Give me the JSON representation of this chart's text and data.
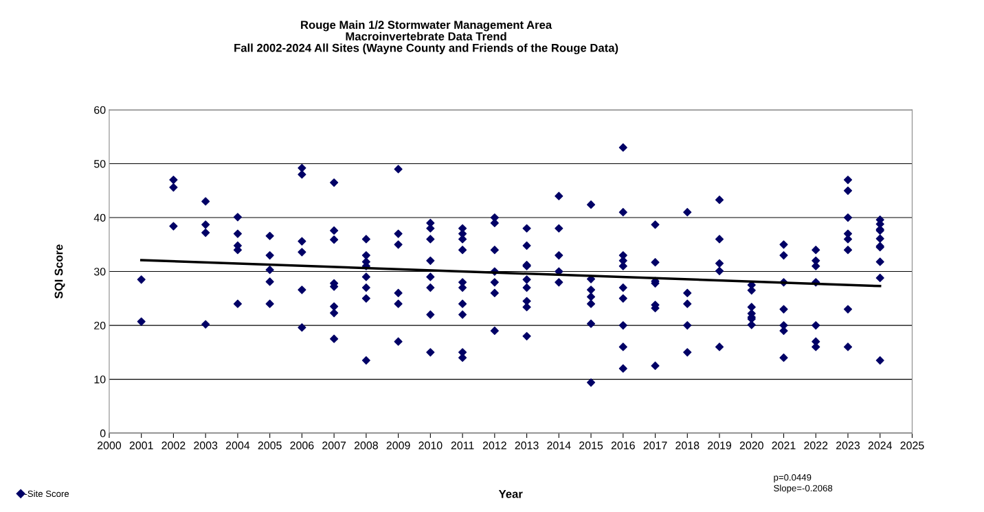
{
  "chart_data": {
    "type": "scatter",
    "title": "Rouge Main 1/2 Stormwater Management Area\nMacroinvertebrate Data Trend\nFall 2002-2024 All Sites (Wayne County and Friends of the Rouge Data)",
    "xlabel": "Year",
    "ylabel": "SQI Score",
    "xlim": [
      2000,
      2025
    ],
    "xticks": [
      2000,
      2001,
      2002,
      2003,
      2004,
      2005,
      2006,
      2007,
      2008,
      2009,
      2010,
      2011,
      2012,
      2013,
      2014,
      2015,
      2016,
      2017,
      2018,
      2019,
      2020,
      2021,
      2022,
      2023,
      2024,
      2025
    ],
    "ylim": [
      0,
      60
    ],
    "yticks": [
      0,
      10,
      20,
      30,
      40,
      50,
      60
    ],
    "grid": "y",
    "legend": "bottom left",
    "marker": "diamond",
    "annotations": [
      "p=0.0449",
      "Slope=-0.2068"
    ],
    "series": [
      {
        "name": "-Site Score",
        "color": "#000066",
        "x": [
          2001,
          2001,
          2002,
          2002,
          2002,
          2003,
          2003,
          2003,
          2003,
          2004,
          2004,
          2004,
          2004,
          2004,
          2005,
          2005,
          2005,
          2005,
          2005,
          2006,
          2006,
          2006,
          2006,
          2006,
          2006,
          2007,
          2007,
          2007,
          2007,
          2007,
          2007,
          2007,
          2007,
          2008,
          2008,
          2008,
          2008,
          2008,
          2008,
          2008,
          2008,
          2009,
          2009,
          2009,
          2009,
          2009,
          2009,
          2010,
          2010,
          2010,
          2010,
          2010,
          2010,
          2010,
          2010,
          2011,
          2011,
          2011,
          2011,
          2011,
          2011,
          2011,
          2011,
          2011,
          2011,
          2012,
          2012,
          2012,
          2012,
          2012,
          2012,
          2012,
          2013,
          2013,
          2013,
          2013,
          2013,
          2013,
          2013,
          2013,
          2013,
          2014,
          2014,
          2014,
          2014,
          2014,
          2015,
          2015,
          2015,
          2015,
          2015,
          2015,
          2015,
          2016,
          2016,
          2016,
          2016,
          2016,
          2016,
          2016,
          2016,
          2016,
          2016,
          2017,
          2017,
          2017,
          2017,
          2017,
          2017,
          2017,
          2018,
          2018,
          2018,
          2018,
          2018,
          2019,
          2019,
          2019,
          2019,
          2019,
          2020,
          2020,
          2020,
          2020,
          2020,
          2020,
          2020,
          2021,
          2021,
          2021,
          2021,
          2021,
          2021,
          2021,
          2022,
          2022,
          2022,
          2022,
          2022,
          2022,
          2022,
          2023,
          2023,
          2023,
          2023,
          2023,
          2023,
          2023,
          2023,
          2024,
          2024,
          2024,
          2024,
          2024,
          2024,
          2024,
          2024,
          2024,
          2024
        ],
        "values": [
          28.5,
          20.7,
          47,
          45.6,
          38.4,
          43,
          38.7,
          37.2,
          20.2,
          40.1,
          37,
          34.8,
          34,
          24,
          36.6,
          33,
          30.3,
          28.1,
          24,
          49.2,
          48,
          35.6,
          33.6,
          26.6,
          19.6,
          46.5,
          37.6,
          35.9,
          27.8,
          27.2,
          23.5,
          22.3,
          17.5,
          36,
          33,
          31.8,
          31,
          29,
          27,
          25,
          13.5,
          49,
          37,
          35,
          26,
          24,
          17,
          39,
          38,
          36,
          32,
          29,
          27,
          22,
          15,
          38,
          37,
          36,
          34,
          28,
          27,
          24,
          22,
          15,
          14,
          40,
          39,
          34,
          30,
          28,
          26,
          19,
          38,
          34.8,
          31.2,
          31,
          28.5,
          27,
          24.5,
          23.4,
          18,
          44,
          38,
          33,
          30,
          28,
          42.4,
          28.6,
          26.6,
          25.3,
          24,
          20.3,
          9.4,
          53,
          41,
          33,
          32,
          31,
          27,
          25,
          20,
          16,
          12,
          38.7,
          31.7,
          28.2,
          27.8,
          23.8,
          23.2,
          12.5,
          41,
          26,
          24,
          20,
          15,
          43.3,
          36,
          31.5,
          30.1,
          16,
          27.5,
          26.5,
          23.4,
          22.2,
          21.5,
          21.2,
          20.1,
          35,
          33,
          28,
          23,
          20,
          19,
          14,
          34,
          32,
          31,
          28,
          20,
          17,
          16,
          47,
          45,
          40,
          37,
          36,
          34,
          23,
          16,
          39.6,
          38.8,
          37.8,
          37.6,
          36.1,
          34.7,
          34.5,
          31.8,
          28.8,
          13.5
        ]
      },
      {
        "color": "#000000",
        "type": "line",
        "marker": "none",
        "x": [
          2001,
          2024
        ],
        "values": [
          32.1,
          27.3
        ]
      }
    ]
  }
}
